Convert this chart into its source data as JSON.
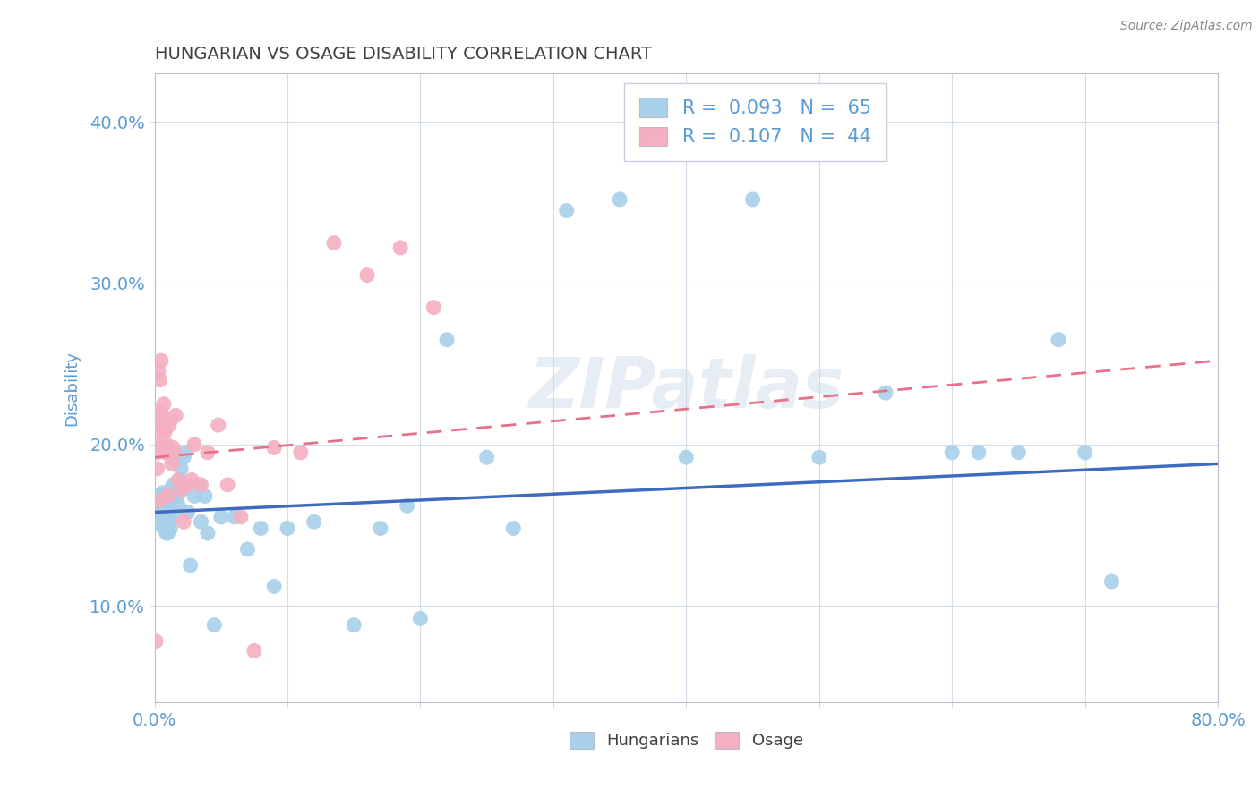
{
  "title": "HUNGARIAN VS OSAGE DISABILITY CORRELATION CHART",
  "source_text": "Source: ZipAtlas.com",
  "ylabel": "Disability",
  "xlim": [
    0.0,
    0.8
  ],
  "ylim": [
    0.04,
    0.43
  ],
  "x_ticks": [
    0.0,
    0.1,
    0.2,
    0.3,
    0.4,
    0.5,
    0.6,
    0.7,
    0.8
  ],
  "y_ticks": [
    0.1,
    0.2,
    0.3,
    0.4
  ],
  "y_tick_labels": [
    "10.0%",
    "20.0%",
    "30.0%",
    "40.0%"
  ],
  "blue_color": "#a8d0ea",
  "pink_color": "#f4afc0",
  "blue_line_color": "#3f6bbf",
  "pink_line_color": "#e8708a",
  "R_blue": 0.093,
  "N_blue": 65,
  "R_pink": 0.107,
  "N_pink": 44,
  "legend_label_blue": "Hungarians",
  "legend_label_pink": "Osage",
  "blue_x": [
    0.002,
    0.003,
    0.004,
    0.005,
    0.005,
    0.006,
    0.006,
    0.007,
    0.007,
    0.008,
    0.008,
    0.009,
    0.009,
    0.01,
    0.01,
    0.011,
    0.011,
    0.012,
    0.012,
    0.013,
    0.014,
    0.015,
    0.015,
    0.016,
    0.017,
    0.018,
    0.019,
    0.02,
    0.021,
    0.022,
    0.023,
    0.025,
    0.027,
    0.03,
    0.033,
    0.035,
    0.038,
    0.04,
    0.045,
    0.05,
    0.06,
    0.07,
    0.08,
    0.09,
    0.1,
    0.12,
    0.15,
    0.17,
    0.19,
    0.2,
    0.22,
    0.25,
    0.27,
    0.31,
    0.35,
    0.4,
    0.45,
    0.5,
    0.55,
    0.6,
    0.62,
    0.65,
    0.68,
    0.7,
    0.72
  ],
  "blue_y": [
    0.165,
    0.155,
    0.162,
    0.158,
    0.168,
    0.15,
    0.17,
    0.148,
    0.16,
    0.155,
    0.168,
    0.145,
    0.162,
    0.145,
    0.165,
    0.155,
    0.152,
    0.148,
    0.172,
    0.168,
    0.175,
    0.158,
    0.172,
    0.19,
    0.168,
    0.162,
    0.178,
    0.185,
    0.172,
    0.192,
    0.195,
    0.158,
    0.125,
    0.168,
    0.175,
    0.152,
    0.168,
    0.145,
    0.088,
    0.155,
    0.155,
    0.135,
    0.148,
    0.112,
    0.148,
    0.152,
    0.088,
    0.148,
    0.162,
    0.092,
    0.265,
    0.192,
    0.148,
    0.345,
    0.352,
    0.192,
    0.352,
    0.192,
    0.232,
    0.195,
    0.195,
    0.195,
    0.265,
    0.195,
    0.115
  ],
  "pink_x": [
    0.001,
    0.002,
    0.002,
    0.003,
    0.003,
    0.004,
    0.004,
    0.005,
    0.005,
    0.006,
    0.006,
    0.007,
    0.007,
    0.008,
    0.008,
    0.009,
    0.01,
    0.01,
    0.011,
    0.012,
    0.013,
    0.014,
    0.015,
    0.016,
    0.018,
    0.02,
    0.022,
    0.025,
    0.028,
    0.03,
    0.035,
    0.04,
    0.048,
    0.055,
    0.065,
    0.075,
    0.09,
    0.11,
    0.135,
    0.16,
    0.185,
    0.21,
    0.001,
    0.003
  ],
  "pink_y": [
    0.2,
    0.195,
    0.185,
    0.245,
    0.22,
    0.212,
    0.24,
    0.218,
    0.252,
    0.208,
    0.218,
    0.198,
    0.225,
    0.208,
    0.195,
    0.2,
    0.168,
    0.198,
    0.212,
    0.215,
    0.188,
    0.198,
    0.195,
    0.218,
    0.178,
    0.172,
    0.152,
    0.175,
    0.178,
    0.2,
    0.175,
    0.195,
    0.212,
    0.175,
    0.155,
    0.072,
    0.198,
    0.195,
    0.325,
    0.305,
    0.322,
    0.285,
    0.078,
    0.165
  ],
  "blue_trend_x": [
    0.0,
    0.8
  ],
  "blue_trend_y": [
    0.158,
    0.188
  ],
  "pink_trend_x": [
    0.0,
    0.8
  ],
  "pink_trend_y": [
    0.192,
    0.252
  ],
  "watermark_text": "ZIPatlas",
  "title_color": "#404040",
  "axis_label_color": "#5b9bd5",
  "tick_label_color": "#5b9bd5",
  "grid_color": "#d3dce8",
  "background_color": "#ffffff"
}
